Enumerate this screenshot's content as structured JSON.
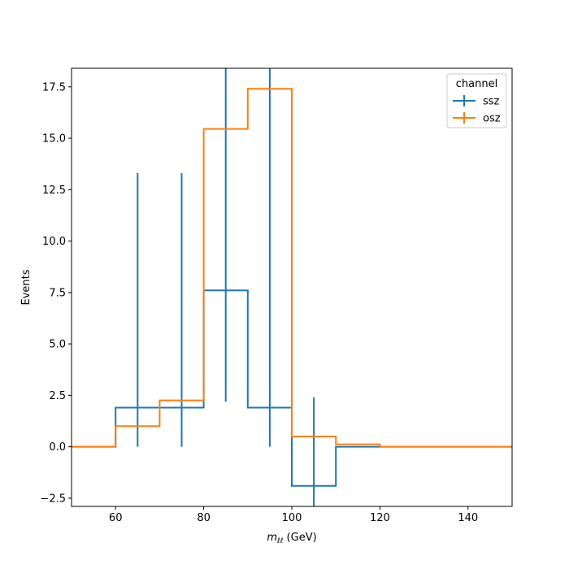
{
  "chart_data": {
    "type": "step-histogram",
    "title": "",
    "xlabel": {
      "math": "m",
      "sub": "ℓℓ",
      "rest": " (GeV)"
    },
    "ylabel": "Events",
    "xlim": [
      50,
      150
    ],
    "ylim": [
      -2.9,
      18.4
    ],
    "xticks": [
      60,
      80,
      100,
      120,
      140
    ],
    "xtick_labels": [
      "60",
      "80",
      "100",
      "120",
      "140"
    ],
    "yticks": [
      -2.5,
      0.0,
      2.5,
      5.0,
      7.5,
      10.0,
      12.5,
      15.0,
      17.5
    ],
    "ytick_labels": [
      "−2.5",
      "0.0",
      "2.5",
      "5.0",
      "7.5",
      "10.0",
      "12.5",
      "15.0",
      "17.5"
    ],
    "bin_edges": [
      50,
      60,
      70,
      80,
      90,
      100,
      110,
      120,
      150
    ],
    "legend": {
      "title": "channel",
      "position": "top-right"
    },
    "series": [
      {
        "name": "ssz",
        "color": "#1f77b4",
        "values": [
          0.0,
          1.9,
          1.9,
          7.6,
          1.9,
          -1.9,
          0.0,
          0.0
        ],
        "errorbars": [
          {
            "x": 65,
            "low": 0.0,
            "high": 13.3
          },
          {
            "x": 75,
            "low": 0.0,
            "high": 13.3
          },
          {
            "x": 85,
            "low": 2.2,
            "high": 18.4
          },
          {
            "x": 95,
            "low": 0.0,
            "high": 18.4
          },
          {
            "x": 105,
            "low": -2.9,
            "high": 2.4
          }
        ]
      },
      {
        "name": "osz",
        "color": "#ff7f0e",
        "values": [
          0.0,
          1.0,
          2.25,
          15.45,
          17.4,
          0.5,
          0.12,
          0.0
        ],
        "errorbars": []
      }
    ]
  }
}
